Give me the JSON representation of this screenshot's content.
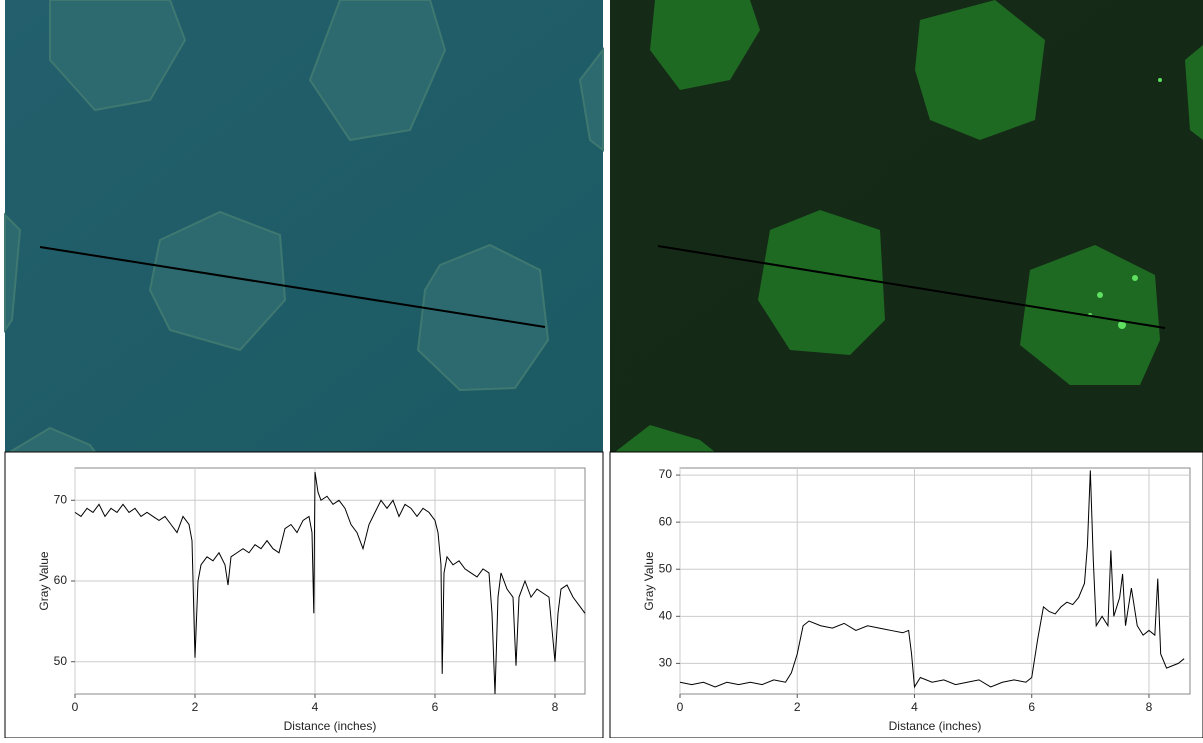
{
  "chart_data": [
    {
      "type": "line",
      "x_label": "Distance (inches)",
      "y_label": "Gray Value",
      "color": "#000000",
      "grid": true,
      "xlim": [
        0,
        8.5
      ],
      "ylim": [
        46,
        74
      ],
      "xticks": [
        0,
        2,
        4,
        6,
        8
      ],
      "yticks": [
        50,
        60,
        70
      ],
      "x": [
        0,
        0.1,
        0.2,
        0.3,
        0.4,
        0.5,
        0.6,
        0.7,
        0.8,
        0.9,
        1.0,
        1.1,
        1.2,
        1.3,
        1.4,
        1.5,
        1.6,
        1.7,
        1.8,
        1.9,
        1.95,
        2.0,
        2.05,
        2.1,
        2.2,
        2.3,
        2.4,
        2.5,
        2.55,
        2.6,
        2.7,
        2.8,
        2.9,
        3.0,
        3.1,
        3.2,
        3.3,
        3.4,
        3.5,
        3.6,
        3.7,
        3.8,
        3.9,
        3.95,
        3.98,
        4.0,
        4.05,
        4.1,
        4.2,
        4.3,
        4.4,
        4.5,
        4.6,
        4.7,
        4.8,
        4.9,
        5.0,
        5.1,
        5.2,
        5.3,
        5.4,
        5.5,
        5.6,
        5.7,
        5.8,
        5.9,
        6.0,
        6.05,
        6.1,
        6.12,
        6.15,
        6.2,
        6.3,
        6.4,
        6.5,
        6.6,
        6.7,
        6.8,
        6.9,
        6.95,
        7.0,
        7.05,
        7.1,
        7.2,
        7.3,
        7.35,
        7.4,
        7.5,
        7.6,
        7.7,
        7.8,
        7.9,
        8.0,
        8.05,
        8.1,
        8.2,
        8.3,
        8.4,
        8.5
      ],
      "values": [
        68.5,
        68,
        69,
        68.5,
        69.5,
        68,
        69,
        68.5,
        69.5,
        68.5,
        69,
        68,
        68.5,
        68,
        67.5,
        68,
        67,
        66,
        68,
        67,
        65,
        50.5,
        60,
        62,
        63,
        62.5,
        63.5,
        62,
        59.5,
        63,
        63.5,
        64,
        63.5,
        64.5,
        64,
        65,
        64,
        63.5,
        66.5,
        67,
        66,
        67.5,
        68,
        66,
        56,
        73.5,
        71,
        70,
        70.5,
        69.5,
        70,
        69,
        67,
        66,
        64,
        67,
        68.5,
        70,
        69,
        70,
        68,
        69.5,
        69,
        68,
        69,
        68.5,
        67.5,
        66,
        62,
        48.5,
        61,
        63,
        62,
        62.5,
        61.5,
        61,
        60.5,
        61.5,
        61,
        56,
        46,
        58,
        61,
        59,
        58,
        49.5,
        58,
        60,
        58,
        59,
        58.5,
        58,
        50,
        56,
        59,
        59.5,
        58,
        57,
        56
      ]
    },
    {
      "type": "line",
      "x_label": "Distance (inches)",
      "y_label": "Gray Value",
      "color": "#000000",
      "grid": true,
      "xlim": [
        0,
        8.7
      ],
      "ylim": [
        23.5,
        71.5
      ],
      "xticks": [
        0,
        2,
        4,
        6,
        8
      ],
      "yticks": [
        30,
        40,
        50,
        60,
        70
      ],
      "x": [
        0,
        0.2,
        0.4,
        0.6,
        0.8,
        1.0,
        1.2,
        1.4,
        1.6,
        1.8,
        1.9,
        2.0,
        2.1,
        2.2,
        2.4,
        2.6,
        2.8,
        3.0,
        3.2,
        3.4,
        3.6,
        3.8,
        3.9,
        3.95,
        4.0,
        4.1,
        4.3,
        4.5,
        4.7,
        4.9,
        5.1,
        5.3,
        5.5,
        5.7,
        5.9,
        6.0,
        6.1,
        6.2,
        6.3,
        6.4,
        6.5,
        6.6,
        6.7,
        6.8,
        6.9,
        6.95,
        7.0,
        7.05,
        7.1,
        7.2,
        7.3,
        7.35,
        7.4,
        7.5,
        7.55,
        7.6,
        7.7,
        7.8,
        7.9,
        8.0,
        8.1,
        8.15,
        8.2,
        8.3,
        8.4,
        8.5,
        8.6
      ],
      "values": [
        26,
        25.5,
        26,
        25,
        26,
        25.5,
        26,
        25.5,
        26.5,
        26,
        28,
        32,
        38,
        39,
        38,
        37.5,
        38.5,
        37,
        38,
        37.5,
        37,
        36.5,
        37,
        32,
        25,
        27,
        26,
        26.5,
        25.5,
        26,
        26.5,
        25,
        26,
        26.5,
        26,
        27,
        35,
        42,
        41,
        40.5,
        42,
        43,
        42.5,
        44,
        47,
        55,
        71,
        52,
        38,
        40,
        38,
        54,
        40,
        44,
        49,
        38,
        46,
        38,
        36,
        37,
        36,
        48,
        32,
        29,
        29.5,
        30,
        31
      ]
    }
  ]
}
